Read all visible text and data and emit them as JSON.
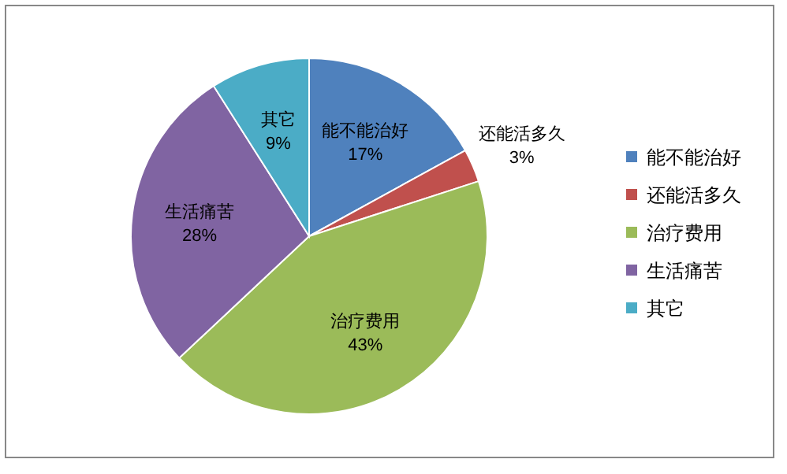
{
  "chart_data": {
    "type": "pie",
    "categories": [
      "能不能治好",
      "还能活多久",
      "治疗费用",
      "生活痛苦",
      "其它"
    ],
    "values": [
      17,
      3,
      43,
      28,
      9
    ],
    "colors": [
      "#4f81bd",
      "#c0504d",
      "#9bbb59",
      "#8064a2",
      "#4bacc6"
    ],
    "value_labels": [
      "17%",
      "3%",
      "43%",
      "28%",
      "9%"
    ],
    "legend": "right"
  }
}
